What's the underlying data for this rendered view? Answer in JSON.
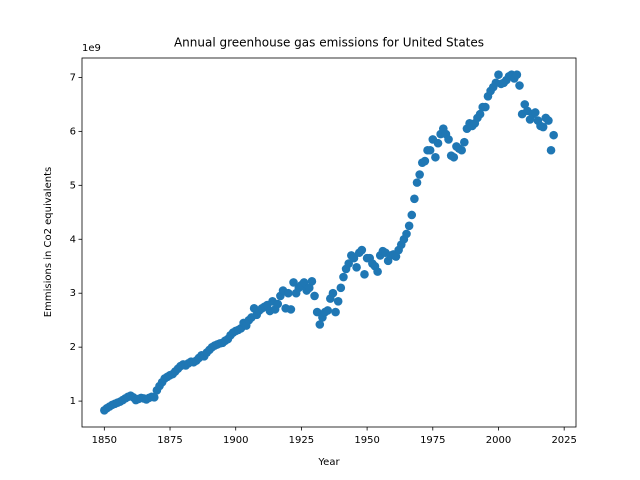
{
  "chart_data": {
    "type": "scatter",
    "title": "Annual greenhouse gas emissions for United States",
    "x_label": "Year",
    "y_label": "Emmisions in Co2 equivalents",
    "y_offset_label": "1e9",
    "series": [
      {
        "color": "#1f77b4",
        "x": [
          1850,
          1851,
          1852,
          1853,
          1854,
          1855,
          1856,
          1857,
          1858,
          1859,
          1860,
          1861,
          1862,
          1863,
          1864,
          1865,
          1866,
          1867,
          1868,
          1869,
          1870,
          1871,
          1872,
          1873,
          1874,
          1875,
          1876,
          1877,
          1878,
          1879,
          1880,
          1881,
          1882,
          1883,
          1884,
          1885,
          1886,
          1887,
          1888,
          1889,
          1890,
          1891,
          1892,
          1893,
          1894,
          1895,
          1896,
          1897,
          1898,
          1899,
          1900,
          1901,
          1902,
          1903,
          1904,
          1905,
          1906,
          1907,
          1908,
          1909,
          1910,
          1911,
          1912,
          1913,
          1914,
          1915,
          1916,
          1917,
          1918,
          1919,
          1920,
          1921,
          1922,
          1923,
          1924,
          1925,
          1926,
          1927,
          1928,
          1929,
          1930,
          1931,
          1932,
          1933,
          1934,
          1935,
          1936,
          1937,
          1938,
          1939,
          1940,
          1941,
          1942,
          1943,
          1944,
          1945,
          1946,
          1947,
          1948,
          1949,
          1950,
          1951,
          1952,
          1953,
          1954,
          1955,
          1956,
          1957,
          1958,
          1959,
          1960,
          1961,
          1962,
          1963,
          1964,
          1965,
          1966,
          1967,
          1968,
          1969,
          1970,
          1971,
          1972,
          1973,
          1974,
          1975,
          1976,
          1977,
          1978,
          1979,
          1980,
          1981,
          1982,
          1983,
          1984,
          1985,
          1986,
          1987,
          1988,
          1989,
          1990,
          1991,
          1992,
          1993,
          1994,
          1995,
          1996,
          1997,
          1998,
          1999,
          2000,
          2001,
          2002,
          2003,
          2004,
          2005,
          2006,
          2007,
          2008,
          2009,
          2010,
          2011,
          2012,
          2013,
          2014,
          2015,
          2016,
          2017,
          2018,
          2019,
          2020,
          2021
        ],
        "values": [
          0.83,
          0.87,
          0.9,
          0.93,
          0.95,
          0.97,
          0.99,
          1.02,
          1.05,
          1.08,
          1.1,
          1.07,
          1.02,
          1.04,
          1.06,
          1.05,
          1.03,
          1.06,
          1.08,
          1.07,
          1.2,
          1.28,
          1.35,
          1.42,
          1.45,
          1.48,
          1.5,
          1.55,
          1.6,
          1.65,
          1.68,
          1.66,
          1.7,
          1.73,
          1.72,
          1.75,
          1.8,
          1.85,
          1.83,
          1.9,
          1.95,
          2.0,
          2.03,
          2.05,
          2.07,
          2.08,
          2.12,
          2.15,
          2.22,
          2.27,
          2.3,
          2.32,
          2.35,
          2.45,
          2.4,
          2.5,
          2.55,
          2.72,
          2.6,
          2.68,
          2.72,
          2.75,
          2.78,
          2.67,
          2.85,
          2.7,
          2.8,
          2.95,
          3.05,
          2.72,
          3.0,
          2.7,
          3.2,
          3.0,
          3.1,
          3.15,
          3.2,
          3.05,
          3.1,
          3.22,
          2.95,
          2.65,
          2.42,
          2.55,
          2.65,
          2.68,
          2.9,
          3.0,
          2.65,
          2.85,
          3.1,
          3.3,
          3.45,
          3.55,
          3.7,
          3.65,
          3.48,
          3.75,
          3.8,
          3.35,
          3.65,
          3.65,
          3.55,
          3.5,
          3.4,
          3.7,
          3.78,
          3.75,
          3.6,
          3.7,
          3.72,
          3.68,
          3.8,
          3.9,
          4.0,
          4.1,
          4.25,
          4.45,
          4.75,
          5.05,
          5.2,
          5.42,
          5.45,
          5.65,
          5.65,
          5.85,
          5.52,
          5.78,
          5.95,
          6.05,
          5.95,
          5.85,
          5.55,
          5.52,
          5.72,
          5.68,
          5.65,
          5.8,
          6.05,
          6.15,
          6.1,
          6.15,
          6.25,
          6.32,
          6.45,
          6.45,
          6.65,
          6.75,
          6.82,
          6.9,
          7.05,
          6.88,
          6.9,
          6.95,
          7.02,
          7.05,
          6.98,
          7.05,
          6.85,
          6.32,
          6.5,
          6.38,
          6.22,
          6.32,
          6.35,
          6.2,
          6.1,
          6.08,
          6.25,
          6.2,
          5.65,
          5.93
        ]
      }
    ],
    "xlim": [
      1841.5,
      2029.5
    ],
    "xticks": [
      1850,
      1875,
      1900,
      1925,
      1950,
      1975,
      2000,
      2025
    ],
    "ylim": [
      0.52,
      7.36
    ],
    "yticks": [
      1,
      2,
      3,
      4,
      5,
      6,
      7
    ],
    "grid": false
  }
}
